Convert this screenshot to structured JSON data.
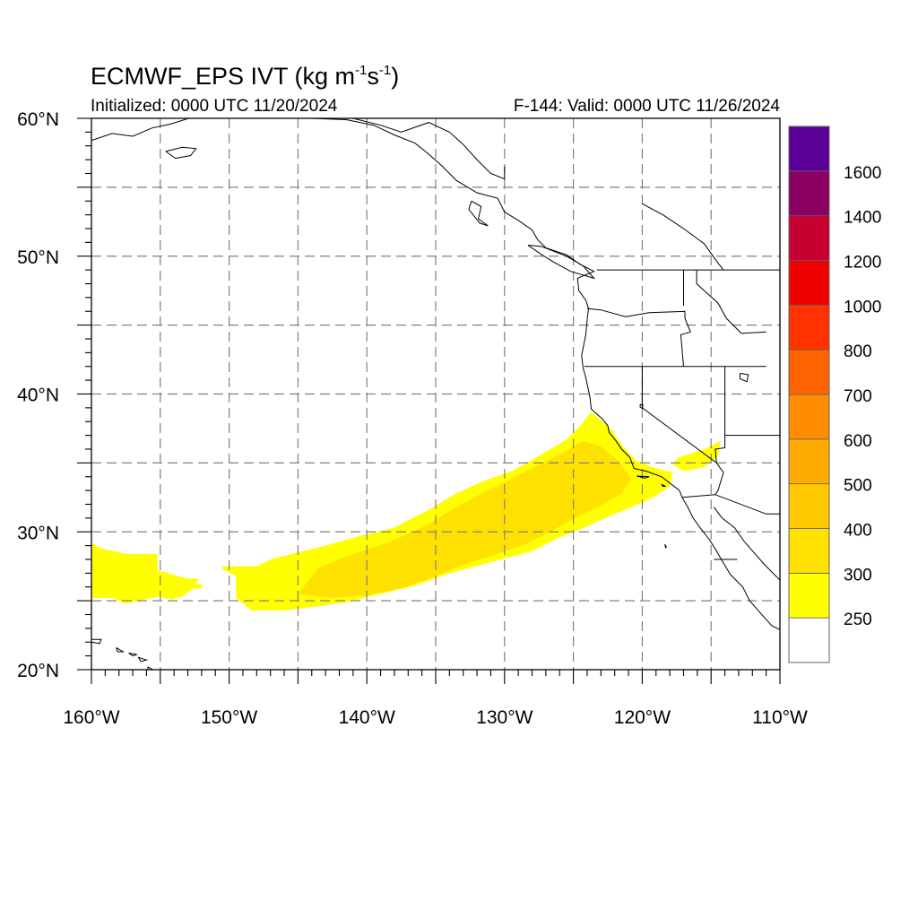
{
  "title": {
    "main": "ECMWF_EPS IVT (kg m",
    "exp1": "-1",
    "mid": "s",
    "exp2": "-1",
    "close": ")"
  },
  "initialized": "Initialized: 0000 UTC 11/20/2024",
  "valid": "F-144: Valid: 0000 UTC 11/26/2024",
  "map": {
    "lon_range": [
      -160,
      -110
    ],
    "lat_range": [
      20,
      60
    ],
    "grid_spacing_deg": 5,
    "gridlines": "dashed",
    "x_tick_labels": [
      "160°W",
      "150°W",
      "140°W",
      "130°W",
      "120°W",
      "110°W"
    ],
    "y_tick_labels": [
      "20°N",
      "30°N",
      "40°N",
      "50°N",
      "60°N"
    ]
  },
  "colorbar": {
    "labels": [
      "250",
      "300",
      "400",
      "500",
      "600",
      "700",
      "800",
      "1000",
      "1200",
      "1400",
      "1600"
    ],
    "colors_bottom_to_top": [
      "#ffffff",
      "#ffff00",
      "#ffe100",
      "#ffc800",
      "#ffaa00",
      "#ff8c00",
      "#ff6400",
      "#ff3200",
      "#f00000",
      "#c80032",
      "#8c0064",
      "#5a0096"
    ]
  },
  "chart_data": {
    "type": "heatmap",
    "description_values": "IVT filled contours (kg m-1 s-1)",
    "levels": [
      250,
      300,
      400,
      500,
      600,
      700,
      800,
      1000,
      1200,
      1400,
      1600
    ],
    "regions": [
      {
        "level": "250-300",
        "color": "#ffff00",
        "polygon_lonlat": [
          [
            -160,
            29.2
          ],
          [
            -159.3,
            28.8
          ],
          [
            -157.5,
            28.4
          ],
          [
            -155.2,
            28.4
          ],
          [
            -155.2,
            27.2
          ],
          [
            -153,
            26.6
          ],
          [
            -152.2,
            26.6
          ],
          [
            -152.6,
            25.9
          ],
          [
            -153.4,
            25.3
          ],
          [
            -154.2,
            25.1
          ],
          [
            -155.2,
            25.3
          ],
          [
            -157.5,
            24.8
          ],
          [
            -158.5,
            25.2
          ],
          [
            -160,
            25.2
          ]
        ]
      },
      {
        "level": "250-300",
        "color": "#ffff00",
        "polygon_lonlat": [
          [
            -150.5,
            27.5
          ],
          [
            -148,
            27.5
          ],
          [
            -147,
            28
          ],
          [
            -145,
            28.5
          ],
          [
            -143,
            29
          ],
          [
            -140.5,
            29.7
          ],
          [
            -138,
            30.3
          ],
          [
            -135.5,
            31.6
          ],
          [
            -133.5,
            32.8
          ],
          [
            -131.5,
            33.7
          ],
          [
            -129.5,
            34.4
          ],
          [
            -127.5,
            35.5
          ],
          [
            -125.5,
            36.7
          ],
          [
            -124.5,
            37.7
          ],
          [
            -123.7,
            38.7
          ],
          [
            -122.3,
            37.5
          ],
          [
            -121.5,
            36.3
          ],
          [
            -120.5,
            35.2
          ],
          [
            -119.3,
            34.7
          ],
          [
            -117.8,
            34.3
          ],
          [
            -118,
            33.3
          ],
          [
            -119.2,
            32.5
          ],
          [
            -120.5,
            31.9
          ],
          [
            -122,
            31.3
          ],
          [
            -124,
            30.4
          ],
          [
            -126,
            29.6
          ],
          [
            -128,
            28.6
          ],
          [
            -131,
            27.8
          ],
          [
            -134,
            27.0
          ],
          [
            -136.5,
            26.1
          ],
          [
            -139,
            25.5
          ],
          [
            -141.5,
            24.9
          ],
          [
            -143.5,
            24.6
          ],
          [
            -146,
            24.3
          ],
          [
            -148.4,
            24.3
          ],
          [
            -149.5,
            25.2
          ],
          [
            -149.5,
            26.8
          ],
          [
            -150.5,
            27.3
          ]
        ]
      },
      {
        "level": "300-400",
        "color": "#ffe100",
        "polygon_lonlat": [
          [
            -145,
            25.5
          ],
          [
            -143.5,
            27.4
          ],
          [
            -141,
            28.4
          ],
          [
            -138.5,
            29.2
          ],
          [
            -136,
            30.3
          ],
          [
            -134,
            31.5
          ],
          [
            -132,
            32.6
          ],
          [
            -130,
            33.6
          ],
          [
            -128,
            34.6
          ],
          [
            -126,
            35.6
          ],
          [
            -124.3,
            36.6
          ],
          [
            -123,
            36.2
          ],
          [
            -121.7,
            35.1
          ],
          [
            -120.8,
            33.9
          ],
          [
            -121.5,
            32.8
          ],
          [
            -123,
            31.9
          ],
          [
            -124.5,
            31.2
          ],
          [
            -126.5,
            30.1
          ],
          [
            -128.5,
            29.1
          ],
          [
            -130.5,
            28.4
          ],
          [
            -133,
            27.6
          ],
          [
            -135.5,
            26.6
          ],
          [
            -137.5,
            25.9
          ],
          [
            -140,
            25.4
          ],
          [
            -142.5,
            25.2
          ]
        ]
      },
      {
        "level": "250-300",
        "color": "#ffff00",
        "polygon_lonlat": [
          [
            -117.4,
            35.4
          ],
          [
            -115.5,
            36.0
          ],
          [
            -114.3,
            36.6
          ],
          [
            -114.5,
            35.5
          ],
          [
            -115.5,
            34.7
          ],
          [
            -117,
            34.4
          ],
          [
            -117.8,
            34.9
          ]
        ]
      },
      {
        "level": "250-300",
        "color": "#ffff00",
        "polygon_lonlat": [
          [
            -152.6,
            26.2
          ],
          [
            -152.0,
            26.2
          ],
          [
            -152.0,
            25.9
          ],
          [
            -152.6,
            25.9
          ]
        ]
      },
      {
        "level": "250-300",
        "color": "#ffff00",
        "polygon_lonlat": [
          [
            -122.8,
            36.6
          ],
          [
            -122.4,
            36.6
          ],
          [
            -122.4,
            36.2
          ],
          [
            -122.8,
            36.2
          ]
        ]
      }
    ]
  }
}
